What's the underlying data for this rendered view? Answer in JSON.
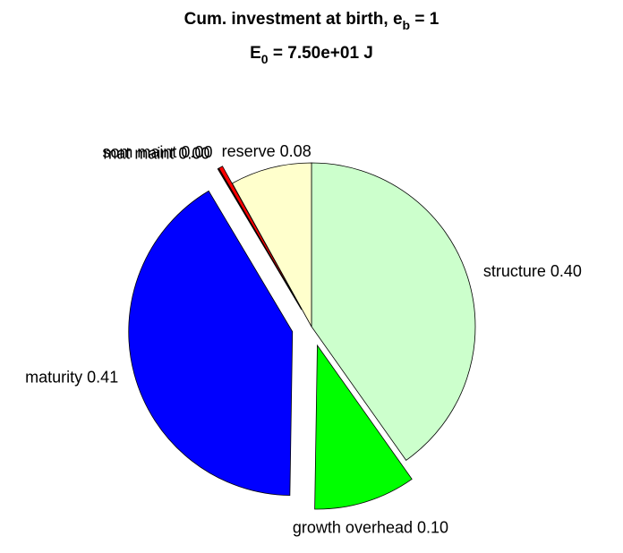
{
  "chart_data": {
    "type": "pie",
    "title": [
      "Cum. investment at birth, e",
      "b",
      " = 1"
    ],
    "subtitle": [
      "E",
      "0",
      " = 7.50e+01 J"
    ],
    "categories": [
      "structure",
      "growth overhead",
      "maturity",
      "mat maint",
      "som maint",
      "reserve"
    ],
    "values": [
      0.4,
      0.1,
      0.41,
      0.001,
      0.004,
      0.08
    ],
    "value_labels": [
      "0.40",
      "0.10",
      "0.41",
      "0.00",
      "0.00",
      "0.08"
    ],
    "colors": [
      "#ccffcc",
      "#00ff00",
      "#0000ff",
      "#600000",
      "#ff0000",
      "#ffffcc"
    ],
    "explode": [
      false,
      true,
      true,
      true,
      true,
      false
    ]
  }
}
